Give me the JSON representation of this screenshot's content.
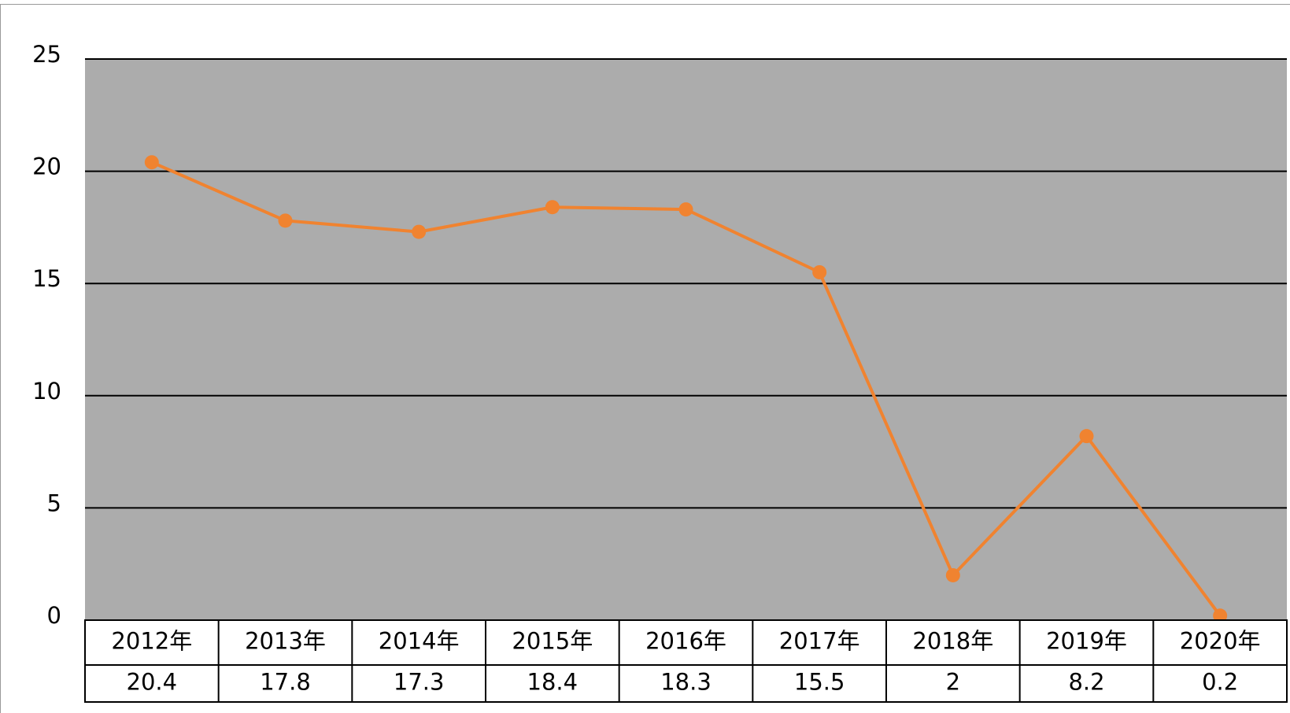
{
  "chart_data": {
    "type": "line",
    "categories": [
      "2012年",
      "2013年",
      "2014年",
      "2015年",
      "2016年",
      "2017年",
      "2018年",
      "2019年",
      "2020年"
    ],
    "values": [
      20.4,
      17.8,
      17.3,
      18.4,
      18.3,
      15.5,
      2,
      8.2,
      0.2
    ],
    "color": "#f08330",
    "plot_background": "#acacac",
    "ylim": [
      0,
      25
    ],
    "yticks": [
      0,
      5,
      10,
      15,
      20,
      25
    ],
    "grid": true,
    "data_table": true
  }
}
